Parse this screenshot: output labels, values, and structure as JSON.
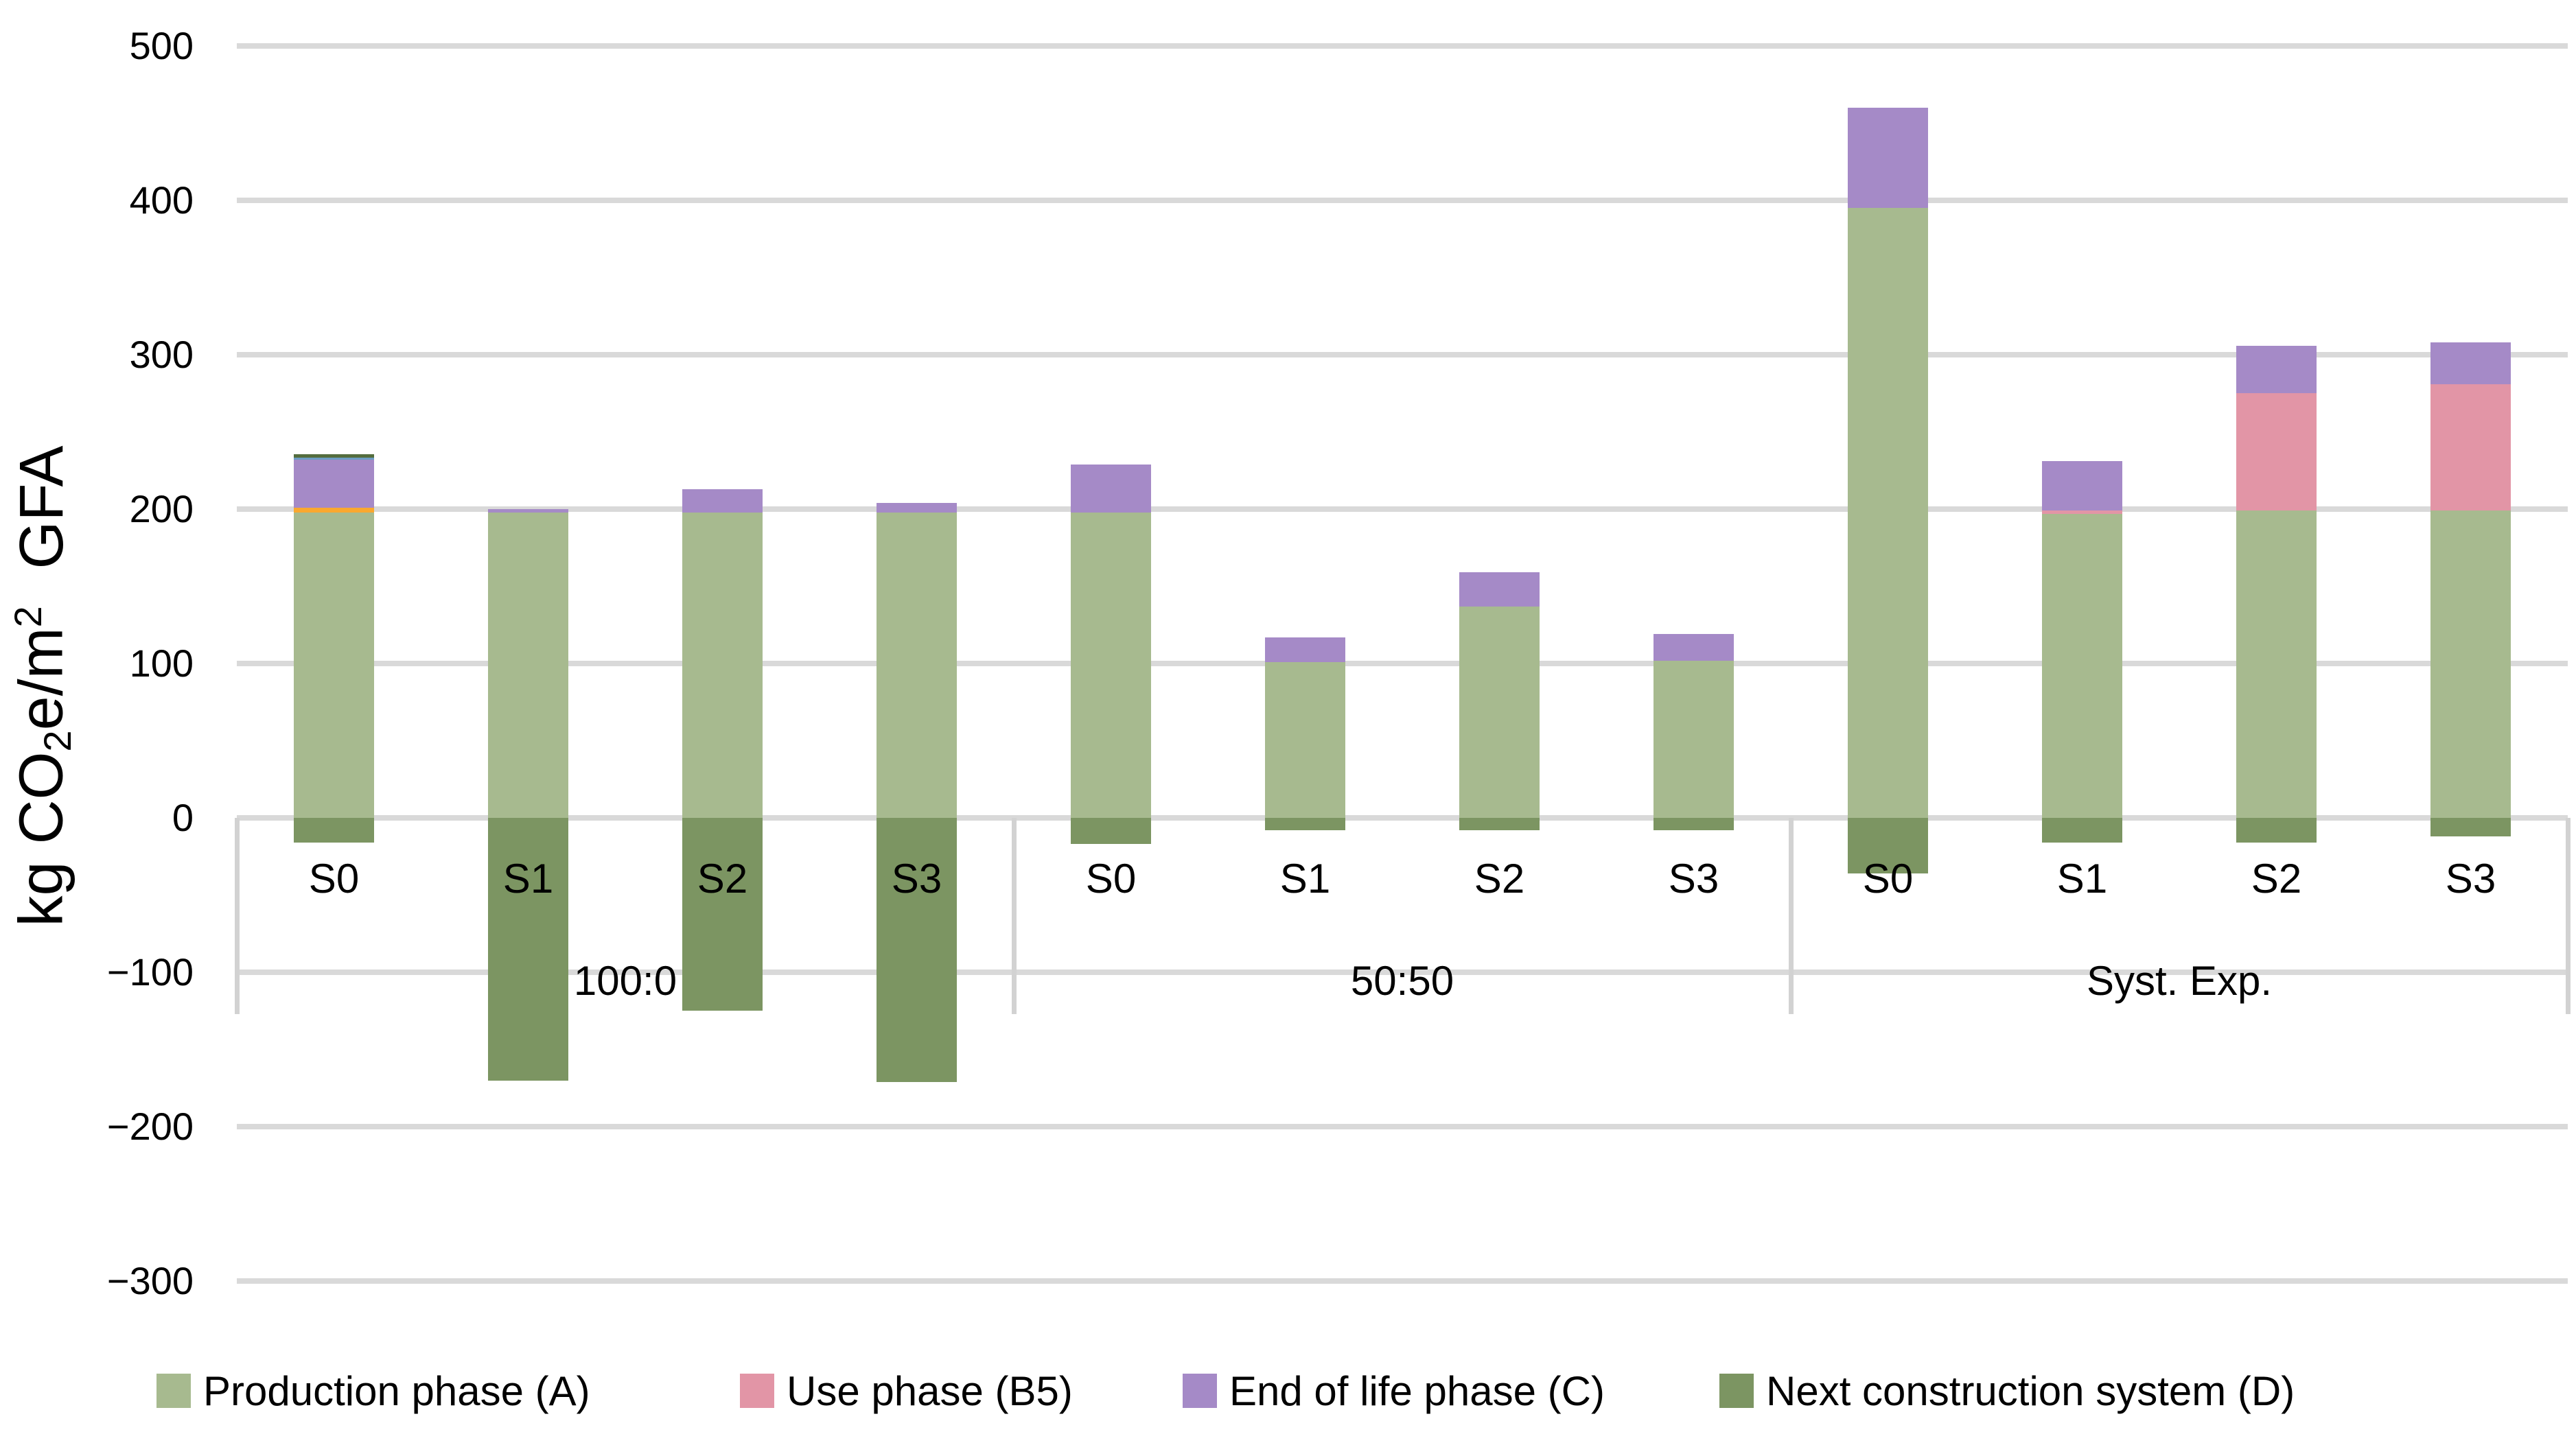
{
  "chart_data": {
    "type": "bar",
    "stacked": true,
    "title": "",
    "ylabel": {
      "part1": "kg CO",
      "sub": "2",
      "part2": "e/m",
      "sup": "2",
      "part3": " GFA",
      "plain": "kg CO2e/m2 GFA"
    },
    "ylim": [
      -300,
      500
    ],
    "grid": true,
    "legend_position": "bottom",
    "y_ticks": [
      {
        "value": 500,
        "label": "500"
      },
      {
        "value": 400,
        "label": "400"
      },
      {
        "value": 300,
        "label": "300"
      },
      {
        "value": 200,
        "label": "200"
      },
      {
        "value": 100,
        "label": "100"
      },
      {
        "value": 0,
        "label": "0"
      },
      {
        "value": -100,
        "label": "−100"
      },
      {
        "value": -200,
        "label": "−200"
      },
      {
        "value": -300,
        "label": "−300"
      }
    ],
    "groups": [
      {
        "label": "100:0",
        "scenarios": [
          "S0",
          "S1",
          "S2",
          "S3"
        ]
      },
      {
        "label": "50:50",
        "scenarios": [
          "S0",
          "S1",
          "S2",
          "S3"
        ]
      },
      {
        "label": "Syst. Exp.",
        "scenarios": [
          "S0",
          "S1",
          "S2",
          "S3"
        ]
      }
    ],
    "series": [
      {
        "name": "Production phase (A)",
        "color": "#A7BA8F",
        "values": [
          198,
          198,
          198,
          198,
          198,
          101,
          137,
          102,
          395,
          197,
          199,
          199
        ]
      },
      {
        "name": "Use phase (B5)",
        "color": "#E295A6",
        "values": [
          0,
          0,
          0,
          0,
          0,
          0,
          0,
          0,
          0,
          2,
          76,
          82
        ]
      },
      {
        "name": "End of life phase (C)",
        "color": "#A58AC7",
        "values": [
          31,
          2,
          15,
          6,
          31,
          16,
          22,
          17,
          65,
          32,
          31,
          27
        ]
      },
      {
        "name": "Next construction system (D)",
        "color": "#7C9562",
        "values": [
          -16,
          -170,
          -125,
          -171,
          -17,
          -8,
          -8,
          -8,
          -36,
          -16,
          -16,
          -12
        ]
      }
    ],
    "extra_segments_unlabeled": [
      {
        "bar": "100:0 S0",
        "slot": "after-production",
        "value": 3,
        "color": "#FAA82F"
      },
      {
        "bar": "100:0 S0",
        "slot": "above-end-of-life",
        "value": 1.5,
        "color": "#6C9CC3"
      },
      {
        "bar": "100:0 S0",
        "slot": "top",
        "value": 2,
        "color": "#546D3E"
      }
    ]
  },
  "legend": {
    "items": [
      {
        "label": "Production phase (A)"
      },
      {
        "label": "Use phase (B5)"
      },
      {
        "label": "End of life phase (C)"
      },
      {
        "label": "Next construction system (D)"
      }
    ]
  },
  "colors": {
    "gridline": "#D9D9D9",
    "separator": "#D2D2D2",
    "text": "#000000",
    "background": "#FFFFFF"
  }
}
